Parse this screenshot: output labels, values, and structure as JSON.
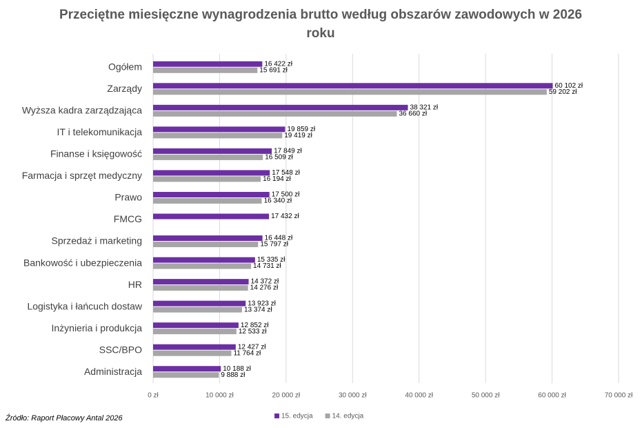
{
  "chart_data": {
    "type": "bar",
    "orientation": "horizontal",
    "title": "Przeciętne miesięczne wynagrodzenia brutto według obszarów zawodowych w 2026 roku",
    "source": "Źródło: Raport Płacowy Antal 2026",
    "categories": [
      "Ogółem",
      "Zarządy",
      "Wyższa kadra zarządzająca",
      "IT i telekomunikacja",
      "Finanse i księgowość",
      "Farmacja i sprzęt medyczny",
      "Prawo",
      "FMCG",
      "Sprzedaż i marketing",
      "Bankowość i ubezpieczenia",
      "HR",
      "Logistyka i łańcuch dostaw",
      "Inżynieria i produkcja",
      "SSC/BPO",
      "Administracja"
    ],
    "series": [
      {
        "name": "15. edycja",
        "color": "#6b2fa3",
        "values": [
          16422,
          60102,
          38321,
          19859,
          17849,
          17548,
          17500,
          17432,
          16448,
          15335,
          14372,
          13923,
          12852,
          12427,
          10188
        ],
        "value_labels": [
          "16 422 zł",
          "60 102 zł",
          "38 321 zł",
          "19 859 zł",
          "17 849 zł",
          "17 548 zł",
          "17 500 zł",
          "17 432 zł",
          "16 448 zł",
          "15 335 zł",
          "14 372 zł",
          "13 923 zł",
          "12 852 zł",
          "12 427 zł",
          "10 188 zł"
        ]
      },
      {
        "name": "14. edycja",
        "color": "#a6a6a6",
        "values": [
          15691,
          59202,
          36660,
          19419,
          16509,
          16194,
          16340,
          null,
          15797,
          14731,
          14276,
          13374,
          12533,
          11764,
          9888
        ],
        "value_labels": [
          "15 691 zł",
          "59 202 zł",
          "36 660 zł",
          "19 419 zł",
          "16 509 zł",
          "16 194 zł",
          "16 340 zł",
          null,
          "15 797 zł",
          "14 731 zł",
          "14 276 zł",
          "13 374 zł",
          "12 533 zł",
          "11 764 zł",
          "9 888 zł"
        ]
      }
    ],
    "xlim": [
      0,
      70000
    ],
    "xticks": [
      {
        "value": 0,
        "label": "0 zł"
      },
      {
        "value": 10000,
        "label": "10 000 zł"
      },
      {
        "value": 20000,
        "label": "20 000 zł"
      },
      {
        "value": 30000,
        "label": "30 000 zł"
      },
      {
        "value": 40000,
        "label": "40 000 zł"
      },
      {
        "value": 50000,
        "label": "50 000 zł"
      },
      {
        "value": 60000,
        "label": "60 000 zł"
      },
      {
        "value": 70000,
        "label": "70 000 zł"
      }
    ],
    "grid": true,
    "legend": "bottom"
  }
}
